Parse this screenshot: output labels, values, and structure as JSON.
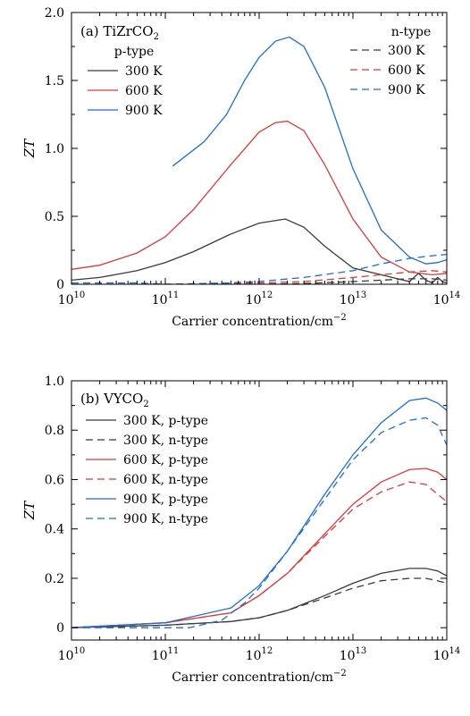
{
  "chart_data": [
    {
      "type": "line",
      "panel_label": "(a) TiZrCO",
      "panel_label_sub": "2",
      "xlabel": "Carrier concentration/cm",
      "xlabel_sup": "−2",
      "ylabel": "ZT",
      "xscale": "log",
      "xlim": [
        10000000000.0,
        100000000000000.0
      ],
      "ylim": [
        0,
        2.0
      ],
      "xtick_exponents": [
        "10",
        "11",
        "12",
        "13",
        "14"
      ],
      "yticks": [
        0,
        0.5,
        1.0,
        1.5,
        2.0
      ],
      "ytick_labels": [
        "0",
        "0.5",
        "1.0",
        "1.5",
        "2.0"
      ],
      "legend_groups": [
        {
          "title": "p-type",
          "placement": "top-left"
        },
        {
          "title": "n-type",
          "placement": "top-right"
        }
      ],
      "series": [
        {
          "name": "300 K",
          "group": 0,
          "style": "solid",
          "color": "#3a3a3a",
          "x": [
            10000000000.0,
            20000000000.0,
            50000000000.0,
            100000000000.0,
            200000000000.0,
            500000000000.0,
            1000000000000.0,
            1900000000000.0,
            3000000000000.0,
            5000000000000.0,
            10000000000000.0,
            20000000000000.0,
            30000000000000.0,
            40000000000000.0,
            50000000000000.0,
            60000000000000.0,
            70000000000000.0,
            80000000000000.0,
            90000000000000.0,
            100000000000000.0
          ],
          "y": [
            0.03,
            0.05,
            0.1,
            0.16,
            0.24,
            0.37,
            0.45,
            0.48,
            0.42,
            0.28,
            0.12,
            0.07,
            0.04,
            0.02,
            0.08,
            0.03,
            0.01,
            0.05,
            0.02,
            0.01
          ]
        },
        {
          "name": "600 K",
          "group": 0,
          "style": "solid",
          "color": "#e0383b",
          "x": [
            10000000000.0,
            20000000000.0,
            50000000000.0,
            100000000000.0,
            200000000000.0,
            500000000000.0,
            1000000000000.0,
            1500000000000.0,
            2000000000000.0,
            3000000000000.0,
            5000000000000.0,
            10000000000000.0,
            20000000000000.0,
            40000000000000.0,
            70000000000000.0,
            100000000000000.0
          ],
          "y": [
            0.11,
            0.14,
            0.23,
            0.35,
            0.55,
            0.88,
            1.12,
            1.19,
            1.2,
            1.13,
            0.88,
            0.48,
            0.2,
            0.09,
            0.07,
            0.08
          ]
        },
        {
          "name": "900 K",
          "group": 0,
          "style": "solid",
          "color": "#1f6fcc",
          "x": [
            120000000000.0,
            260000000000.0,
            450000000000.0,
            700000000000.0,
            1000000000000.0,
            1500000000000.0,
            2100000000000.0,
            3000000000000.0,
            5000000000000.0,
            10000000000000.0,
            20000000000000.0,
            40000000000000.0,
            60000000000000.0,
            80000000000000.0,
            100000000000000.0
          ],
          "y": [
            0.87,
            1.05,
            1.25,
            1.5,
            1.67,
            1.79,
            1.82,
            1.75,
            1.45,
            0.85,
            0.4,
            0.2,
            0.15,
            0.16,
            0.18
          ]
        },
        {
          "name": "300 K",
          "group": 1,
          "style": "dashed",
          "color": "#3a3a3a",
          "x": [
            10000000000.0,
            100000000000.0,
            1000000000000.0,
            3000000000000.0,
            10000000000000.0,
            20000000000000.0,
            40000000000000.0,
            70000000000000.0,
            100000000000000.0
          ],
          "y": [
            0.0,
            0.0,
            0.0,
            0.005,
            0.02,
            0.03,
            0.04,
            0.04,
            0.03
          ]
        },
        {
          "name": "600 K",
          "group": 1,
          "style": "dashed",
          "color": "#e0383b",
          "x": [
            10000000000.0,
            100000000000.0,
            1000000000000.0,
            3000000000000.0,
            10000000000000.0,
            20000000000000.0,
            40000000000000.0,
            70000000000000.0,
            100000000000000.0
          ],
          "y": [
            0.0,
            0.0,
            0.01,
            0.02,
            0.05,
            0.07,
            0.09,
            0.1,
            0.09
          ]
        },
        {
          "name": "900 K",
          "group": 1,
          "style": "dashed",
          "color": "#1f6fcc",
          "x": [
            10000000000.0,
            50000000000.0,
            100000000000.0,
            500000000000.0,
            1000000000000.0,
            3000000000000.0,
            10000000000000.0,
            20000000000000.0,
            40000000000000.0,
            70000000000000.0,
            100000000000000.0
          ],
          "y": [
            0.01,
            0.01,
            0.0,
            0.01,
            0.02,
            0.05,
            0.1,
            0.15,
            0.19,
            0.21,
            0.22
          ]
        }
      ]
    },
    {
      "type": "line",
      "panel_label": "(b) VYCO",
      "panel_label_sub": "2",
      "xlabel": "Carrier concentration/cm",
      "xlabel_sup": "−2",
      "ylabel": "ZT",
      "xscale": "log",
      "xlim": [
        10000000000.0,
        100000000000000.0
      ],
      "ylim": [
        -0.05,
        1.0
      ],
      "xtick_exponents": [
        "10",
        "11",
        "12",
        "13",
        "14"
      ],
      "yticks": [
        0,
        0.2,
        0.4,
        0.6,
        0.8,
        1.0
      ],
      "ytick_labels": [
        "0",
        "0.2",
        "0.4",
        "0.6",
        "0.8",
        "1.0"
      ],
      "legend_groups": [
        {
          "title": "",
          "placement": "top-left"
        }
      ],
      "series": [
        {
          "name": "300 K, p-type",
          "group": 0,
          "style": "solid",
          "color": "#3a3a3a",
          "x": [
            10000000000.0,
            100000000000.0,
            500000000000.0,
            1000000000000.0,
            2000000000000.0,
            5000000000000.0,
            10000000000000.0,
            20000000000000.0,
            40000000000000.0,
            50000000000000.0,
            60000000000000.0,
            80000000000000.0,
            100000000000000.0
          ],
          "y": [
            0.0,
            0.01,
            0.025,
            0.04,
            0.07,
            0.13,
            0.18,
            0.22,
            0.24,
            0.24,
            0.24,
            0.23,
            0.21
          ]
        },
        {
          "name": "300 K, n-type",
          "group": 0,
          "style": "dashed",
          "color": "#3a3a3a",
          "x": [
            10000000000.0,
            100000000000.0,
            500000000000.0,
            1000000000000.0,
            2000000000000.0,
            5000000000000.0,
            10000000000000.0,
            20000000000000.0,
            40000000000000.0,
            60000000000000.0,
            80000000000000.0,
            100000000000000.0
          ],
          "y": [
            0.0,
            0.01,
            0.025,
            0.04,
            0.07,
            0.12,
            0.16,
            0.19,
            0.2,
            0.2,
            0.19,
            0.18
          ]
        },
        {
          "name": "600 K, p-type",
          "group": 0,
          "style": "solid",
          "color": "#e0383b",
          "x": [
            10000000000.0,
            100000000000.0,
            500000000000.0,
            1000000000000.0,
            2000000000000.0,
            5000000000000.0,
            10000000000000.0,
            20000000000000.0,
            40000000000000.0,
            60000000000000.0,
            80000000000000.0,
            100000000000000.0
          ],
          "y": [
            0.0,
            0.02,
            0.06,
            0.13,
            0.22,
            0.38,
            0.5,
            0.59,
            0.64,
            0.645,
            0.63,
            0.6
          ]
        },
        {
          "name": "600 K, n-type",
          "group": 0,
          "style": "dashed",
          "color": "#e0383b",
          "x": [
            10000000000.0,
            100000000000.0,
            500000000000.0,
            1000000000000.0,
            2000000000000.0,
            5000000000000.0,
            10000000000000.0,
            20000000000000.0,
            40000000000000.0,
            60000000000000.0,
            80000000000000.0,
            100000000000000.0
          ],
          "y": [
            0.0,
            0.02,
            0.06,
            0.13,
            0.22,
            0.37,
            0.48,
            0.55,
            0.59,
            0.58,
            0.54,
            0.51
          ]
        },
        {
          "name": "900 K, p-type",
          "group": 0,
          "style": "solid",
          "color": "#1f6fcc",
          "x": [
            10000000000.0,
            100000000000.0,
            500000000000.0,
            1000000000000.0,
            2000000000000.0,
            5000000000000.0,
            10000000000000.0,
            20000000000000.0,
            40000000000000.0,
            60000000000000.0,
            80000000000000.0,
            100000000000000.0
          ],
          "y": [
            0.0,
            0.02,
            0.08,
            0.17,
            0.31,
            0.54,
            0.7,
            0.83,
            0.92,
            0.93,
            0.91,
            0.88
          ]
        },
        {
          "name": "900 K, n-type",
          "group": 0,
          "style": "dashed",
          "color": "#1f6fcc",
          "x": [
            10000000000.0,
            100000000000.0,
            180000000000.0,
            400000000000.0,
            700000000000.0,
            1000000000000.0,
            2000000000000.0,
            5000000000000.0,
            10000000000000.0,
            20000000000000.0,
            40000000000000.0,
            60000000000000.0,
            80000000000000.0,
            100000000000000.0
          ],
          "y": [
            0.0,
            0.0,
            0.0,
            0.03,
            0.1,
            0.16,
            0.31,
            0.52,
            0.68,
            0.79,
            0.84,
            0.85,
            0.82,
            0.74
          ]
        }
      ]
    }
  ]
}
